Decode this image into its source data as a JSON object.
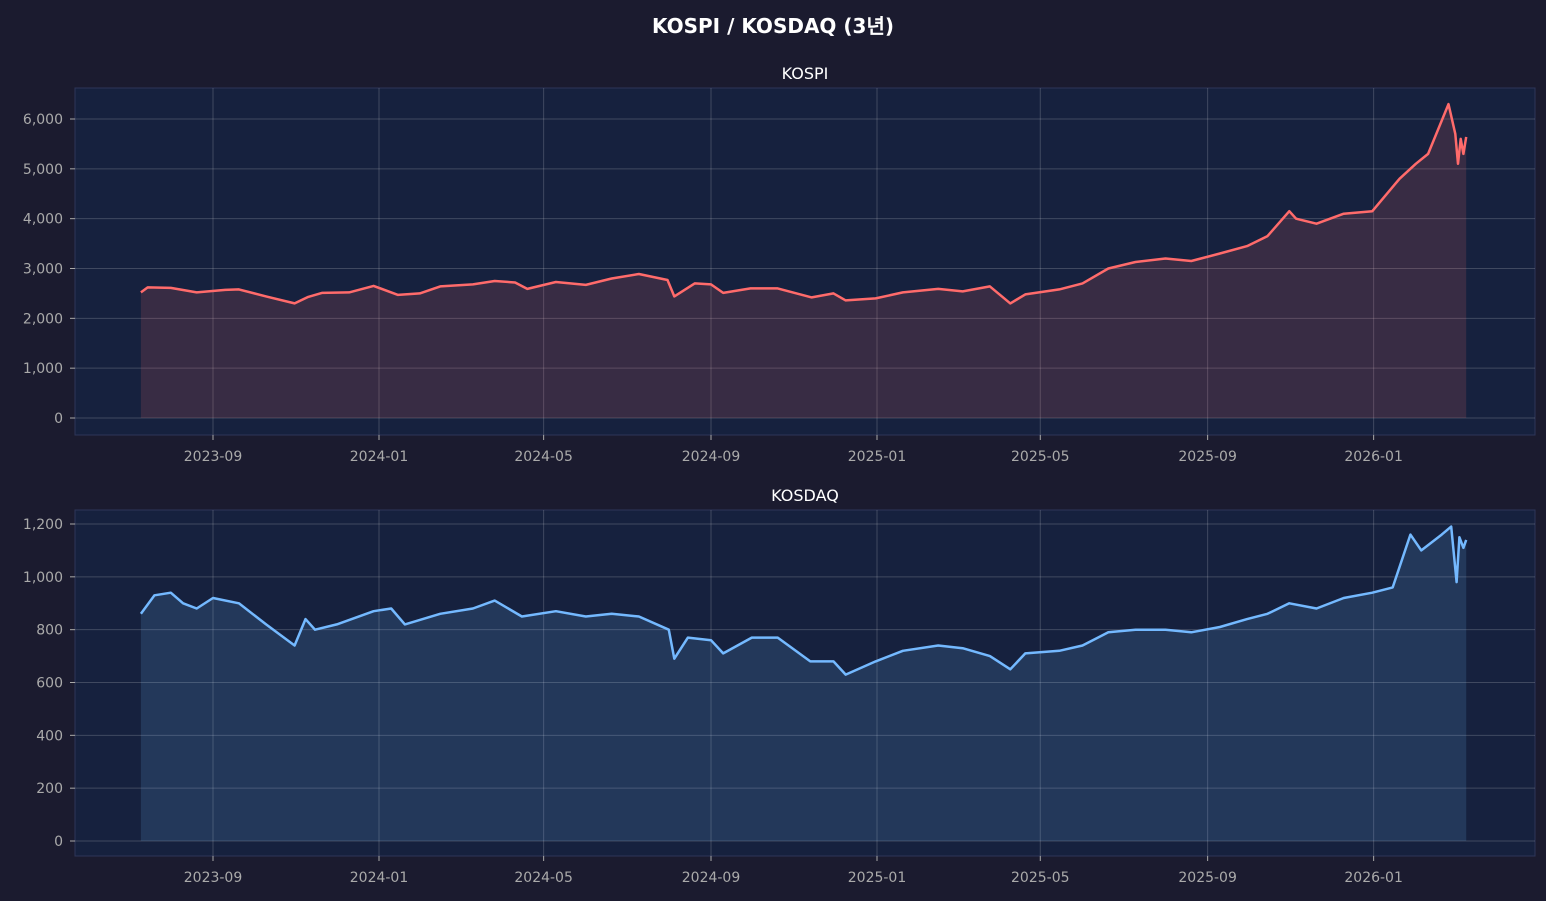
{
  "title": "KOSPI / KOSDAQ (3년)",
  "colors": {
    "background": "#1b1b2f",
    "axes": "#16213e",
    "kospi": "#ff6b6b",
    "kosdaq": "#74b9ff",
    "text": "#aaaaaa"
  },
  "chart_data": [
    {
      "type": "area",
      "title": "KOSPI",
      "color": "#ff6b6b",
      "ylim": [
        -330,
        6650
      ],
      "yticks": [
        0,
        1000,
        2000,
        3000,
        4000,
        5000,
        6000
      ],
      "ytick_labels": [
        "0",
        "1,000",
        "2,000",
        "3,000",
        "4,000",
        "5,000",
        "6,000"
      ],
      "xticks": [
        "2023-09-01",
        "2024-01-01",
        "2024-05-01",
        "2024-09-01",
        "2025-01-01",
        "2025-05-01",
        "2025-09-01",
        "2026-01-01"
      ],
      "xtick_labels": [
        "2023-09",
        "2024-01",
        "2024-05",
        "2024-09",
        "2025-01",
        "2025-05",
        "2025-09",
        "2026-01"
      ],
      "grid": true,
      "points": [
        [
          "2023-07-10",
          2520
        ],
        [
          "2023-07-15",
          2620
        ],
        [
          "2023-08-01",
          2610
        ],
        [
          "2023-08-20",
          2520
        ],
        [
          "2023-09-10",
          2570
        ],
        [
          "2023-09-20",
          2580
        ],
        [
          "2023-10-10",
          2440
        ],
        [
          "2023-10-31",
          2300
        ],
        [
          "2023-11-10",
          2430
        ],
        [
          "2023-11-20",
          2510
        ],
        [
          "2023-12-10",
          2520
        ],
        [
          "2023-12-28",
          2650
        ],
        [
          "2024-01-15",
          2470
        ],
        [
          "2024-01-31",
          2500
        ],
        [
          "2024-02-15",
          2640
        ],
        [
          "2024-03-10",
          2680
        ],
        [
          "2024-03-26",
          2750
        ],
        [
          "2024-04-10",
          2720
        ],
        [
          "2024-04-19",
          2590
        ],
        [
          "2024-05-10",
          2730
        ],
        [
          "2024-06-01",
          2670
        ],
        [
          "2024-06-20",
          2800
        ],
        [
          "2024-07-10",
          2890
        ],
        [
          "2024-07-31",
          2770
        ],
        [
          "2024-08-05",
          2440
        ],
        [
          "2024-08-20",
          2700
        ],
        [
          "2024-09-01",
          2680
        ],
        [
          "2024-09-10",
          2510
        ],
        [
          "2024-09-30",
          2600
        ],
        [
          "2024-10-20",
          2600
        ],
        [
          "2024-11-14",
          2420
        ],
        [
          "2024-11-30",
          2500
        ],
        [
          "2024-12-09",
          2360
        ],
        [
          "2024-12-31",
          2400
        ],
        [
          "2025-01-20",
          2520
        ],
        [
          "2025-02-15",
          2590
        ],
        [
          "2025-03-05",
          2540
        ],
        [
          "2025-03-25",
          2640
        ],
        [
          "2025-04-09",
          2300
        ],
        [
          "2025-04-20",
          2480
        ],
        [
          "2025-05-15",
          2580
        ],
        [
          "2025-06-01",
          2700
        ],
        [
          "2025-06-20",
          3000
        ],
        [
          "2025-07-10",
          3130
        ],
        [
          "2025-08-01",
          3200
        ],
        [
          "2025-08-20",
          3150
        ],
        [
          "2025-09-10",
          3300
        ],
        [
          "2025-09-30",
          3450
        ],
        [
          "2025-10-15",
          3650
        ],
        [
          "2025-10-31",
          4150
        ],
        [
          "2025-11-05",
          4000
        ],
        [
          "2025-11-20",
          3900
        ],
        [
          "2025-12-10",
          4100
        ],
        [
          "2025-12-31",
          4150
        ],
        [
          "2026-01-20",
          4800
        ],
        [
          "2026-02-01",
          5100
        ],
        [
          "2026-02-10",
          5300
        ],
        [
          "2026-02-25",
          6300
        ],
        [
          "2026-03-02",
          5700
        ],
        [
          "2026-03-04",
          5100
        ],
        [
          "2026-03-06",
          5600
        ],
        [
          "2026-03-08",
          5300
        ],
        [
          "2026-03-10",
          5640
        ]
      ]
    },
    {
      "type": "area",
      "title": "KOSDAQ",
      "color": "#74b9ff",
      "ylim": [
        -60,
        1255
      ],
      "yticks": [
        0,
        200,
        400,
        600,
        800,
        1000,
        1200
      ],
      "ytick_labels": [
        "0",
        "200",
        "400",
        "600",
        "800",
        "1,000",
        "1,200"
      ],
      "xticks": [
        "2023-09-01",
        "2024-01-01",
        "2024-05-01",
        "2024-09-01",
        "2025-01-01",
        "2025-05-01",
        "2025-09-01",
        "2026-01-01"
      ],
      "xtick_labels": [
        "2023-09",
        "2024-01",
        "2024-05",
        "2024-09",
        "2025-01",
        "2025-05",
        "2025-09",
        "2026-01"
      ],
      "grid": true,
      "points": [
        [
          "2023-07-10",
          860
        ],
        [
          "2023-07-20",
          930
        ],
        [
          "2023-08-01",
          940
        ],
        [
          "2023-08-10",
          900
        ],
        [
          "2023-08-20",
          880
        ],
        [
          "2023-09-01",
          920
        ],
        [
          "2023-09-20",
          900
        ],
        [
          "2023-10-10",
          820
        ],
        [
          "2023-10-31",
          740
        ],
        [
          "2023-11-08",
          840
        ],
        [
          "2023-11-15",
          800
        ],
        [
          "2023-12-01",
          820
        ],
        [
          "2023-12-28",
          870
        ],
        [
          "2024-01-10",
          880
        ],
        [
          "2024-01-20",
          820
        ],
        [
          "2024-02-15",
          860
        ],
        [
          "2024-03-10",
          880
        ],
        [
          "2024-03-26",
          910
        ],
        [
          "2024-04-15",
          850
        ],
        [
          "2024-05-10",
          870
        ],
        [
          "2024-06-01",
          850
        ],
        [
          "2024-06-20",
          860
        ],
        [
          "2024-07-10",
          850
        ],
        [
          "2024-08-01",
          800
        ],
        [
          "2024-08-05",
          690
        ],
        [
          "2024-08-15",
          770
        ],
        [
          "2024-09-01",
          760
        ],
        [
          "2024-09-10",
          710
        ],
        [
          "2024-10-01",
          770
        ],
        [
          "2024-10-20",
          770
        ],
        [
          "2024-11-13",
          680
        ],
        [
          "2024-11-30",
          680
        ],
        [
          "2024-12-09",
          630
        ],
        [
          "2024-12-31",
          680
        ],
        [
          "2025-01-20",
          720
        ],
        [
          "2025-02-15",
          740
        ],
        [
          "2025-03-05",
          730
        ],
        [
          "2025-03-25",
          700
        ],
        [
          "2025-04-09",
          650
        ],
        [
          "2025-04-20",
          710
        ],
        [
          "2025-05-15",
          720
        ],
        [
          "2025-06-01",
          740
        ],
        [
          "2025-06-20",
          790
        ],
        [
          "2025-07-10",
          800
        ],
        [
          "2025-08-01",
          800
        ],
        [
          "2025-08-20",
          790
        ],
        [
          "2025-09-10",
          810
        ],
        [
          "2025-09-30",
          840
        ],
        [
          "2025-10-15",
          860
        ],
        [
          "2025-10-31",
          900
        ],
        [
          "2025-11-20",
          880
        ],
        [
          "2025-12-10",
          920
        ],
        [
          "2025-12-31",
          940
        ],
        [
          "2026-01-15",
          960
        ],
        [
          "2026-01-28",
          1160
        ],
        [
          "2026-02-05",
          1100
        ],
        [
          "2026-02-20",
          1160
        ],
        [
          "2026-02-27",
          1190
        ],
        [
          "2026-03-03",
          980
        ],
        [
          "2026-03-05",
          1150
        ],
        [
          "2026-03-08",
          1110
        ],
        [
          "2026-03-10",
          1140
        ]
      ]
    }
  ]
}
